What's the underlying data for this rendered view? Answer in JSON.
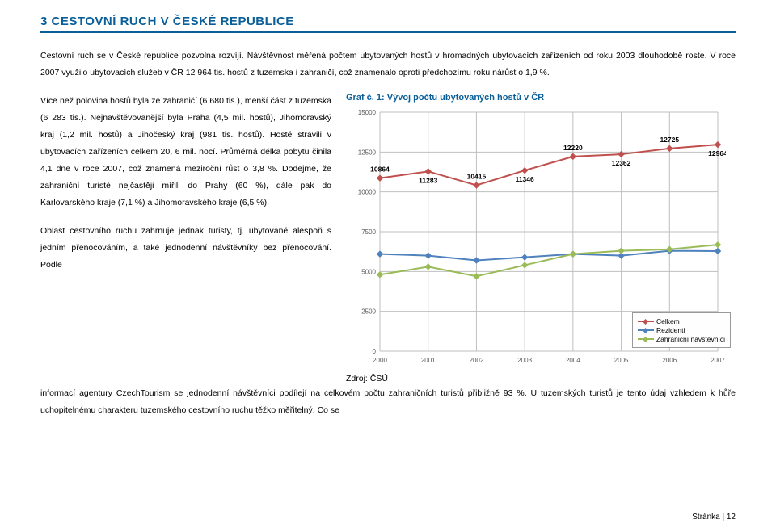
{
  "heading": "3   CESTOVNÍ RUCH V ČESKÉ REPUBLICE",
  "intro": "Cestovní ruch se v České republice pozvolna rozvíjí. Návštěvnost měřená počtem ubytovaných hostů v hromadných ubytovacích zařízeních od roku 2003 dlouhodobě roste. V roce 2007 využilo ubytovacích služeb v ČR 12 964 tis. hostů z tuzemska i zahraničí, což znamenalo oproti předchozímu roku nárůst o 1,9 %.",
  "body1": "Více než polovina hostů byla ze zahraničí (6 680 tis.), menší část z tuzemska (6 283 tis.). Nejnavštěvovanější byla Praha (4,5 mil. hostů), Jihomoravský kraj (1,2 mil. hostů) a Jihočeský kraj (981 tis. hostů). Hosté strávili v ubytovacích zařízeních celkem 20, 6 mil. nocí. Průměrná délka pobytu činila 4,1 dne v roce 2007, což znamená meziroční růst o 3,8 %. Dodejme, že zahraniční turisté nejčastěji mířili do Prahy (60 %), dále pak do Karlovarského kraje (7,1 %) a Jihomoravského kraje (6,5 %).",
  "body2": "Oblast cestovního ruchu zahrnuje jednak turisty, tj. ubytované alespoň s jedním přenocováním, a také jednodenní návštěvníky bez přenocování. Podle",
  "bottom": "informací agentury CzechTourism se jednodenní návštěvníci podílejí na celkovém počtu zahraničních turistů přibližně 93 %. U tuzemských turistů je tento údaj vzhledem k hůře uchopitelnému charakteru tuzemského cestovního ruchu těžko měřitelný. Co se",
  "chart": {
    "title": "Graf č. 1: Vývoj počtu ubytovaných hostů v ČR",
    "source_label": "Zdroj: ČSÚ",
    "type": "line",
    "categories": [
      "2000",
      "2001",
      "2002",
      "2003",
      "2004",
      "2005",
      "2006",
      "2007"
    ],
    "ylim": [
      0,
      15000
    ],
    "ytick_step": 2500,
    "yticks": [
      "0",
      "2500",
      "5000",
      "7500",
      "10000",
      "12500",
      "15000"
    ],
    "grid_color": "#bfbfbf",
    "background_color": "#ffffff",
    "axis_label_fontsize": 8,
    "series": [
      {
        "name": "Celkem",
        "color": "#c0504d",
        "values": [
          10864,
          11283,
          10415,
          11346,
          12220,
          12362,
          12725,
          12964
        ],
        "labeled": true
      },
      {
        "name": "Rezidenti",
        "color": "#4f81bd",
        "values": [
          6100,
          6000,
          5700,
          5900,
          6100,
          6000,
          6300,
          6283
        ],
        "labeled": false
      },
      {
        "name": "Zahraniční návštěvníci",
        "color": "#9bbb59",
        "values": [
          4800,
          5300,
          4700,
          5400,
          6100,
          6300,
          6400,
          6680
        ],
        "labeled": false
      }
    ],
    "legend": [
      "Celkem",
      "Rezidenti",
      "Zahraniční návštěvníci"
    ]
  },
  "footer": "Stránka | 12"
}
